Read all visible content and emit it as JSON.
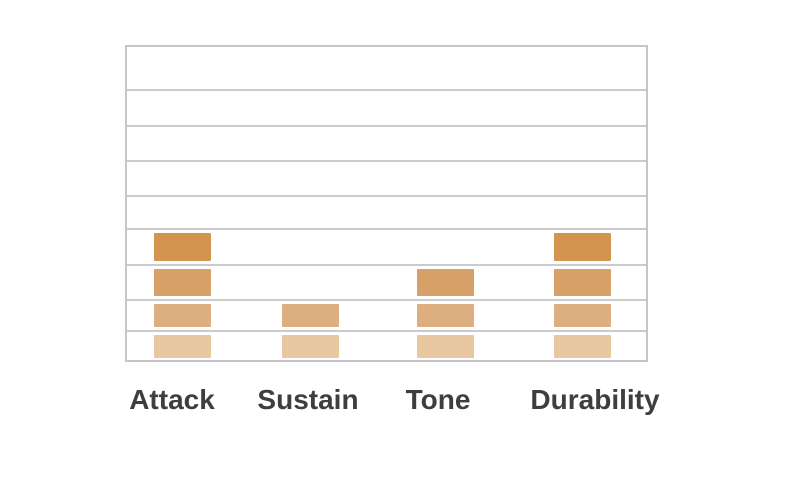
{
  "chart_data": {
    "type": "bar",
    "variant": "stacked-segment-rating",
    "title": "",
    "xlabel": "",
    "ylabel": "",
    "categories": [
      "Attack",
      "Sustain",
      "Tone",
      "Durability"
    ],
    "values": [
      4,
      2,
      3,
      4
    ],
    "ylim": [
      0,
      9
    ],
    "grid_rows": 9,
    "grid": true,
    "legend": false,
    "segment_colors_bottom_to_top": [
      "#e7c8a0",
      "#dcae80",
      "#d6a068",
      "#d3944f"
    ],
    "colors": {
      "plot_border": "#c6c6c9",
      "gridline": "#cbcbce",
      "label_text": "#3e3e40",
      "background": "#ffffff"
    }
  }
}
